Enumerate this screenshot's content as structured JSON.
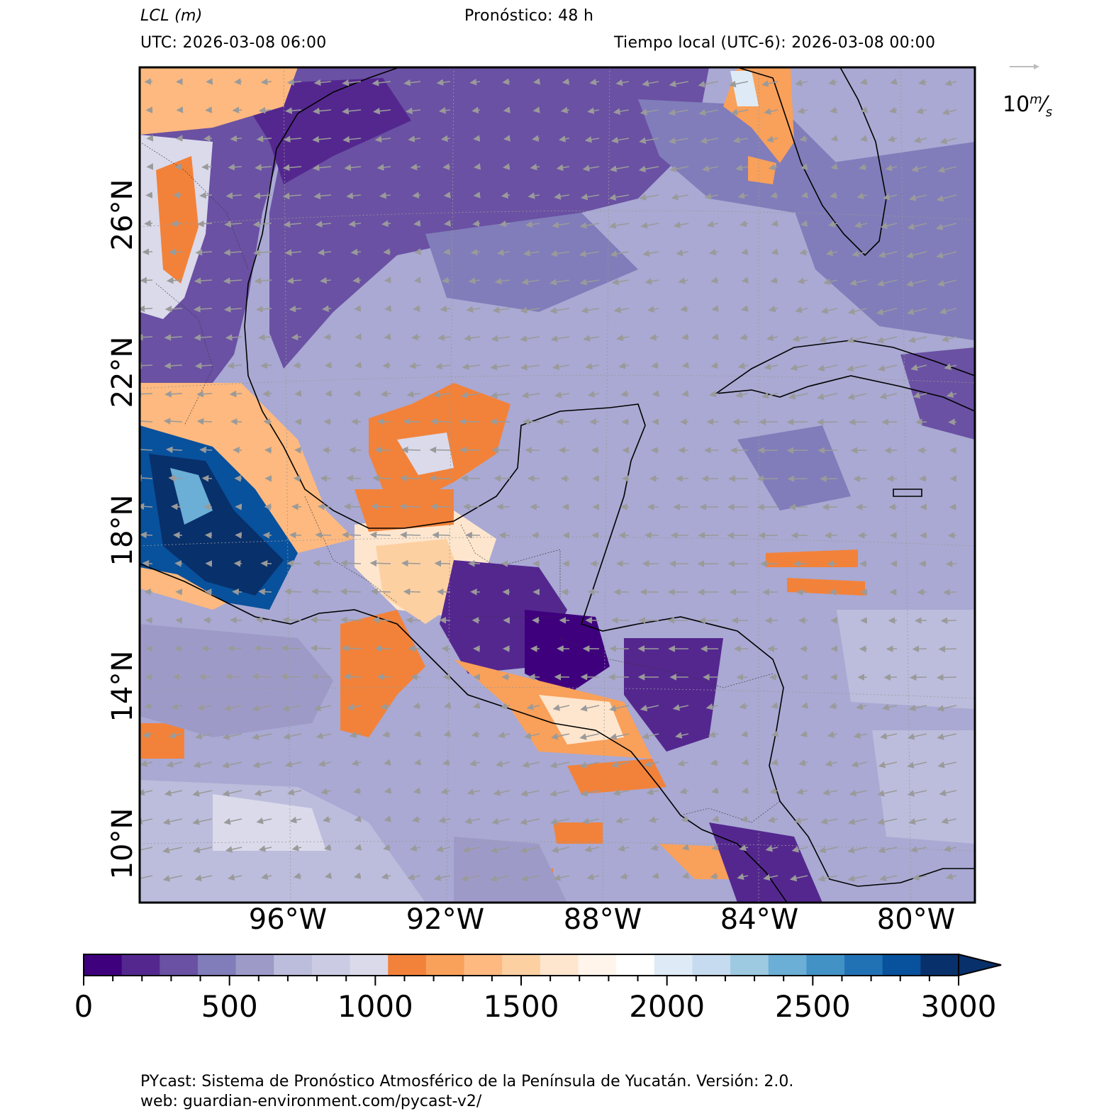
{
  "header": {
    "variable": "LCL",
    "unit": "(m)",
    "forecast": "Pronóstico: 48 h",
    "utc": "UTC:  2026-03-08 06:00",
    "local_time": "Tiempo local (UTC-6): 2026-03-08 00:00"
  },
  "wind_reference": {
    "value": "10",
    "unit_num": "m",
    "unit_den": "s"
  },
  "axes": {
    "lat_labels": [
      "26°N",
      "22°N",
      "18°N",
      "14°N",
      "10°N"
    ],
    "lon_labels": [
      "96°W",
      "92°W",
      "88°W",
      "84°W",
      "80°W"
    ]
  },
  "colorbar": {
    "min": 0,
    "max": 3000,
    "step": 100,
    "extend": "max",
    "tick_labels": [
      "0",
      "500",
      "1000",
      "1500",
      "2000",
      "2500",
      "3000"
    ],
    "colors": [
      "#3f007d",
      "#54278f",
      "#6a51a3",
      "#807dba",
      "#9e9ac8",
      "#bcbddc",
      "#cbcbe4",
      "#dadaeb",
      "#f2823a",
      "#f9a05a",
      "#fdb97f",
      "#fdd0a2",
      "#fee6ce",
      "#fff5eb",
      "#ffffff",
      "#deebf7",
      "#c6dbef",
      "#9ecae1",
      "#6baed6",
      "#4292c6",
      "#2171b5",
      "#08519c",
      "#08306b"
    ]
  },
  "footer": {
    "line1": "PYcast: Sistema de Pronóstico Atmosférico de la Península de Yucatán. Versión: 2.0.",
    "line2": "web: guardian-environment.com/pycast-v2/"
  }
}
